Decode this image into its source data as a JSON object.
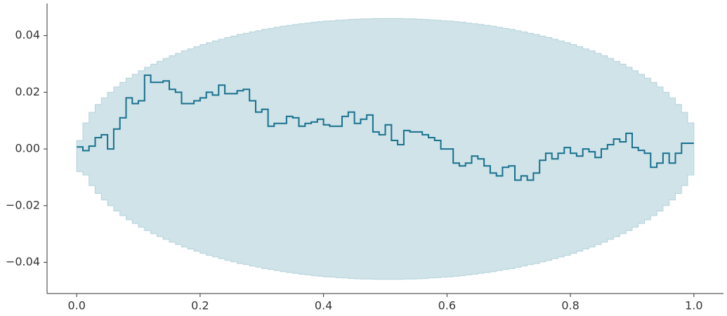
{
  "chart_data": {
    "type": "step",
    "xlim": [
      -0.048,
      1.048
    ],
    "ylim": [
      -0.051,
      0.0513
    ],
    "xticks": [
      {
        "value": 0,
        "label": "0.0"
      },
      {
        "value": 0.2,
        "label": "0.2"
      },
      {
        "value": 0.4,
        "label": "0.4"
      },
      {
        "value": 0.6,
        "label": "0.6"
      },
      {
        "value": 0.8,
        "label": "0.8"
      },
      {
        "value": 1,
        "label": "1.0"
      }
    ],
    "yticks": [
      {
        "value": -0.04,
        "label": "−0.04"
      },
      {
        "value": -0.02,
        "label": "−0.02"
      },
      {
        "value": 0,
        "label": "0.00"
      },
      {
        "value": 0.02,
        "label": "0.02"
      },
      {
        "value": 0.04,
        "label": "0.04"
      }
    ],
    "grid": false,
    "x": [
      0,
      0.01,
      0.02,
      0.03,
      0.04,
      0.05,
      0.06,
      0.07,
      0.08,
      0.09,
      0.1,
      0.11,
      0.12,
      0.13,
      0.14,
      0.15,
      0.16,
      0.17,
      0.18,
      0.19,
      0.2,
      0.21,
      0.22,
      0.23,
      0.24,
      0.25,
      0.26,
      0.27,
      0.28,
      0.29,
      0.3,
      0.31,
      0.32,
      0.33,
      0.34,
      0.35,
      0.36,
      0.37,
      0.38,
      0.39,
      0.4,
      0.41,
      0.42,
      0.43,
      0.44,
      0.45,
      0.46,
      0.47,
      0.48,
      0.49,
      0.5,
      0.51,
      0.52,
      0.53,
      0.54,
      0.55,
      0.56,
      0.57,
      0.58,
      0.59,
      0.6,
      0.61,
      0.62,
      0.63,
      0.64,
      0.65,
      0.66,
      0.67,
      0.68,
      0.69,
      0.7,
      0.71,
      0.72,
      0.73,
      0.74,
      0.75,
      0.76,
      0.77,
      0.78,
      0.79,
      0.8,
      0.81,
      0.82,
      0.83,
      0.84,
      0.85,
      0.86,
      0.87,
      0.88,
      0.89,
      0.9,
      0.91,
      0.92,
      0.93,
      0.94,
      0.95,
      0.96,
      0.97,
      0.98,
      0.99,
      1
    ],
    "series": [
      {
        "color": "#17708e",
        "values": [
          0.0007,
          -0.0006,
          0.001,
          0.004,
          0.005,
          0.0,
          0.007,
          0.011,
          0.018,
          0.016,
          0.017,
          0.026,
          0.0235,
          0.0235,
          0.024,
          0.021,
          0.02,
          0.016,
          0.016,
          0.017,
          0.018,
          0.02,
          0.019,
          0.0225,
          0.0195,
          0.0195,
          0.0205,
          0.021,
          0.017,
          0.013,
          0.014,
          0.008,
          0.009,
          0.009,
          0.0115,
          0.011,
          0.008,
          0.009,
          0.0095,
          0.0105,
          0.0085,
          0.008,
          0.008,
          0.0115,
          0.013,
          0.009,
          0.0105,
          0.012,
          0.006,
          0.005,
          0.0085,
          0.003,
          0.0015,
          0.0065,
          0.006,
          0.006,
          0.005,
          0.004,
          0.003,
          0.0,
          0.0,
          -0.005,
          -0.006,
          -0.005,
          -0.0025,
          -0.0035,
          -0.006,
          -0.0085,
          -0.0095,
          -0.0065,
          -0.006,
          -0.011,
          -0.0095,
          -0.011,
          -0.0085,
          -0.004,
          -0.0015,
          -0.0035,
          -0.0015,
          0.0005,
          -0.0015,
          -0.0025,
          0.0,
          -0.001,
          -0.003,
          0.0,
          0.0015,
          0.0035,
          0.0025,
          0.0055,
          0.0005,
          -0.0005,
          -0.0015,
          -0.0065,
          -0.005,
          -0.0015,
          -0.005,
          -0.0015,
          0.002,
          0.002,
          0.002
        ]
      }
    ],
    "band": {
      "color": "#cfe3e8",
      "edge": "#b5d3db",
      "upper": [
        0.003,
        0.0092,
        0.0129,
        0.0157,
        0.018,
        0.02,
        0.0219,
        0.0235,
        0.025,
        0.0263,
        0.0276,
        0.0288,
        0.0299,
        0.0309,
        0.0319,
        0.0329,
        0.0337,
        0.0346,
        0.0353,
        0.0361,
        0.0368,
        0.0375,
        0.0381,
        0.0387,
        0.0393,
        0.0398,
        0.0404,
        0.0408,
        0.0413,
        0.0417,
        0.0422,
        0.0425,
        0.0429,
        0.0433,
        0.0436,
        0.0439,
        0.0442,
        0.0444,
        0.0447,
        0.0449,
        0.0451,
        0.0452,
        0.0454,
        0.0455,
        0.0457,
        0.0458,
        0.0459,
        0.0459,
        0.046,
        0.046,
        0.046,
        0.046,
        0.046,
        0.0459,
        0.0459,
        0.0458,
        0.0457,
        0.0455,
        0.0454,
        0.0452,
        0.0451,
        0.0449,
        0.0447,
        0.0444,
        0.0442,
        0.0439,
        0.0436,
        0.0433,
        0.0429,
        0.0425,
        0.0422,
        0.0417,
        0.0413,
        0.0408,
        0.0404,
        0.0398,
        0.0393,
        0.0387,
        0.0381,
        0.0375,
        0.0368,
        0.0361,
        0.0353,
        0.0346,
        0.0337,
        0.0329,
        0.0319,
        0.0309,
        0.0299,
        0.0288,
        0.0276,
        0.0263,
        0.025,
        0.0235,
        0.0219,
        0.02,
        0.018,
        0.0157,
        0.0129,
        0.0092,
        0
      ],
      "lower": [
        -0.008,
        -0.0092,
        -0.0129,
        -0.0157,
        -0.018,
        -0.02,
        -0.0219,
        -0.0235,
        -0.025,
        -0.0263,
        -0.0276,
        -0.0288,
        -0.0299,
        -0.0309,
        -0.0319,
        -0.0329,
        -0.0337,
        -0.0346,
        -0.0353,
        -0.0361,
        -0.0368,
        -0.0375,
        -0.0381,
        -0.0387,
        -0.0393,
        -0.0398,
        -0.0404,
        -0.0408,
        -0.0413,
        -0.0417,
        -0.0422,
        -0.0425,
        -0.0429,
        -0.0433,
        -0.0436,
        -0.0439,
        -0.0442,
        -0.0444,
        -0.0447,
        -0.0449,
        -0.0451,
        -0.0452,
        -0.0454,
        -0.0455,
        -0.0457,
        -0.0458,
        -0.0459,
        -0.0459,
        -0.046,
        -0.046,
        -0.046,
        -0.046,
        -0.046,
        -0.0459,
        -0.0459,
        -0.0458,
        -0.0457,
        -0.0455,
        -0.0454,
        -0.0452,
        -0.0451,
        -0.0449,
        -0.0447,
        -0.0444,
        -0.0442,
        -0.0439,
        -0.0436,
        -0.0433,
        -0.0429,
        -0.0425,
        -0.0422,
        -0.0417,
        -0.0413,
        -0.0408,
        -0.0404,
        -0.0398,
        -0.0393,
        -0.0387,
        -0.0381,
        -0.0375,
        -0.0368,
        -0.0361,
        -0.0353,
        -0.0346,
        -0.0337,
        -0.0329,
        -0.0319,
        -0.0309,
        -0.0299,
        -0.0288,
        -0.0276,
        -0.0263,
        -0.025,
        -0.0235,
        -0.0219,
        -0.02,
        -0.018,
        -0.0157,
        -0.0129,
        -0.0092,
        0
      ]
    }
  }
}
